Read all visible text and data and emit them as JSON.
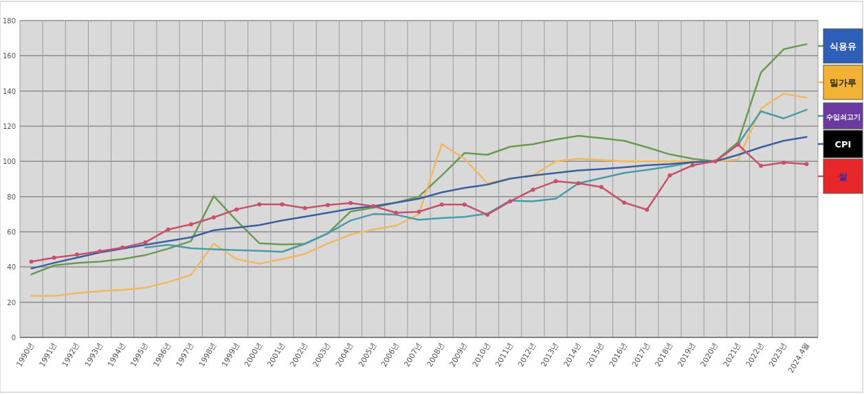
{
  "chart_data": {
    "type": "line",
    "categories": [
      "1990년",
      "1991년",
      "1992년",
      "1993년",
      "1994년",
      "1995년",
      "1996년",
      "1997년",
      "1998년",
      "1999년",
      "2000년",
      "2001년",
      "2002년",
      "2003년",
      "2004년",
      "2005년",
      "2006년",
      "2007년",
      "2008년",
      "2009년",
      "2010년",
      "2011년",
      "2012년",
      "2013년",
      "2014년",
      "2015년",
      "2016년",
      "2017년",
      "2018년",
      "2019년",
      "2020년",
      "2021년",
      "2022년",
      "2023년",
      "2024.4월"
    ],
    "ylim": [
      0,
      180
    ],
    "yticks": [
      0,
      20,
      40,
      60,
      80,
      100,
      120,
      140,
      160,
      180
    ],
    "grid": true,
    "legend": "right",
    "line_style": "solid",
    "series": [
      {
        "name": "식용유",
        "color": "#6a9a50",
        "marker": "none",
        "values": [
          35.8,
          40.9,
          42.3,
          43.1,
          44.5,
          46.7,
          50.4,
          54.7,
          80.3,
          66.4,
          53.5,
          52.8,
          53.2,
          59.1,
          71.5,
          73.7,
          76.6,
          80,
          92,
          104.8,
          103.7,
          108.3,
          109.8,
          112.4,
          114.6,
          113.2,
          111.7,
          108,
          104,
          101.5,
          100,
          111,
          150.5,
          163.7,
          166.6
        ]
      },
      {
        "name": "밀가루",
        "color": "#f0b860",
        "marker": "none",
        "values": [
          23.6,
          23.6,
          25.1,
          26.3,
          27,
          28.2,
          31.4,
          35.5,
          53.3,
          44.5,
          41.9,
          44.5,
          47.4,
          53.3,
          58.4,
          61.3,
          63.5,
          70,
          109.8,
          101.5,
          87.6,
          90.2,
          91.9,
          100,
          101.5,
          100.7,
          100,
          100,
          100,
          100,
          100,
          101,
          130,
          138.5,
          136.2
        ]
      },
      {
        "name": "수입쇠고기",
        "color": "#4a9aa8",
        "marker": "none",
        "values": [
          null,
          null,
          null,
          null,
          null,
          51,
          52.6,
          50.7,
          50.1,
          49.6,
          49.2,
          48.6,
          53.2,
          59.1,
          66.4,
          70.1,
          69.7,
          66.8,
          67.8,
          68.5,
          70.3,
          77.7,
          77.3,
          78.8,
          87.6,
          90.5,
          93.4,
          95.2,
          97.1,
          99.6,
          100,
          109.8,
          128.5,
          124.4,
          129.3
        ]
      },
      {
        "name": "CPI",
        "color": "#3a5fa0",
        "marker": "none",
        "values": [
          39.1,
          42.3,
          45.3,
          48.2,
          50.4,
          52.6,
          54.7,
          56.9,
          60.9,
          62.3,
          63.8,
          66.4,
          68.6,
          70.8,
          73,
          74.5,
          76.6,
          78.8,
          82.4,
          84.9,
          86.8,
          90.2,
          91.9,
          93.4,
          94.9,
          95.6,
          96.6,
          97.8,
          98.5,
          99.6,
          100,
          103.7,
          108,
          111.7,
          113.9
        ]
      },
      {
        "name": "쌀",
        "color": "#c8506a",
        "marker": "circle",
        "values": [
          43.1,
          45.3,
          47,
          48.9,
          51,
          54,
          61.3,
          64.2,
          68.2,
          72.7,
          75.6,
          75.6,
          73.4,
          75.2,
          76.4,
          74.5,
          70.8,
          71.4,
          75.5,
          75.5,
          69.7,
          77.3,
          83.9,
          88.7,
          87.6,
          85.4,
          76.6,
          72.6,
          92,
          97.8,
          100,
          109.5,
          97.5,
          99.3,
          98.5
        ]
      }
    ]
  }
}
